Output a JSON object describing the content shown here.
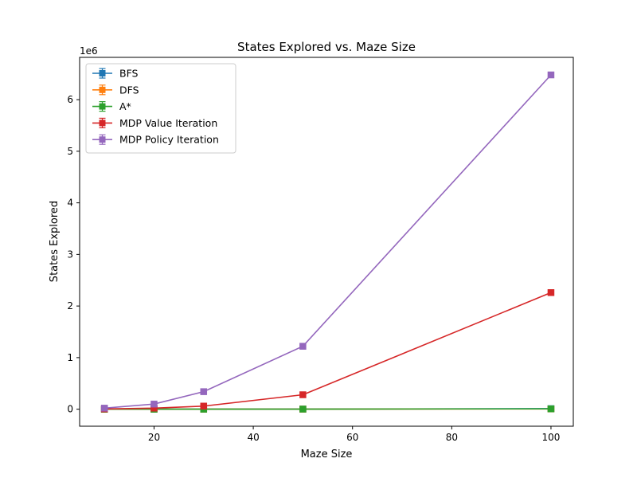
{
  "chart_data": {
    "type": "line",
    "title": "States Explored vs. Maze Size",
    "xlabel": "Maze Size",
    "ylabel": "States Explored",
    "offset_label": "1e6",
    "x": [
      10,
      20,
      30,
      50,
      100
    ],
    "xlim": [
      5,
      104.5
    ],
    "ylim": [
      -0.33,
      6.82
    ],
    "y_unit_multiplier": 1000000,
    "x_ticks": [
      20,
      40,
      60,
      80,
      100
    ],
    "y_ticks": [
      0,
      1,
      2,
      3,
      4,
      5,
      6
    ],
    "grid": false,
    "legend_position": "top-left",
    "marker": "square",
    "error_bars": true,
    "series": [
      {
        "name": "BFS",
        "color": "#1f77b4",
        "values": [
          0.0001,
          0.0004,
          0.0009,
          0.0025,
          0.01
        ]
      },
      {
        "name": "DFS",
        "color": "#ff7f0e",
        "values": [
          5e-05,
          0.0002,
          0.0004,
          0.0012,
          0.005
        ]
      },
      {
        "name": "A*",
        "color": "#2ca02c",
        "values": [
          7e-05,
          0.0003,
          0.0006,
          0.0017,
          0.007
        ]
      },
      {
        "name": "MDP Value Iteration",
        "color": "#d62728",
        "values": [
          0.005,
          0.02,
          0.06,
          0.28,
          2.26
        ]
      },
      {
        "name": "MDP Policy Iteration",
        "color": "#9467bd",
        "values": [
          0.02,
          0.1,
          0.34,
          1.22,
          6.48
        ]
      }
    ]
  }
}
